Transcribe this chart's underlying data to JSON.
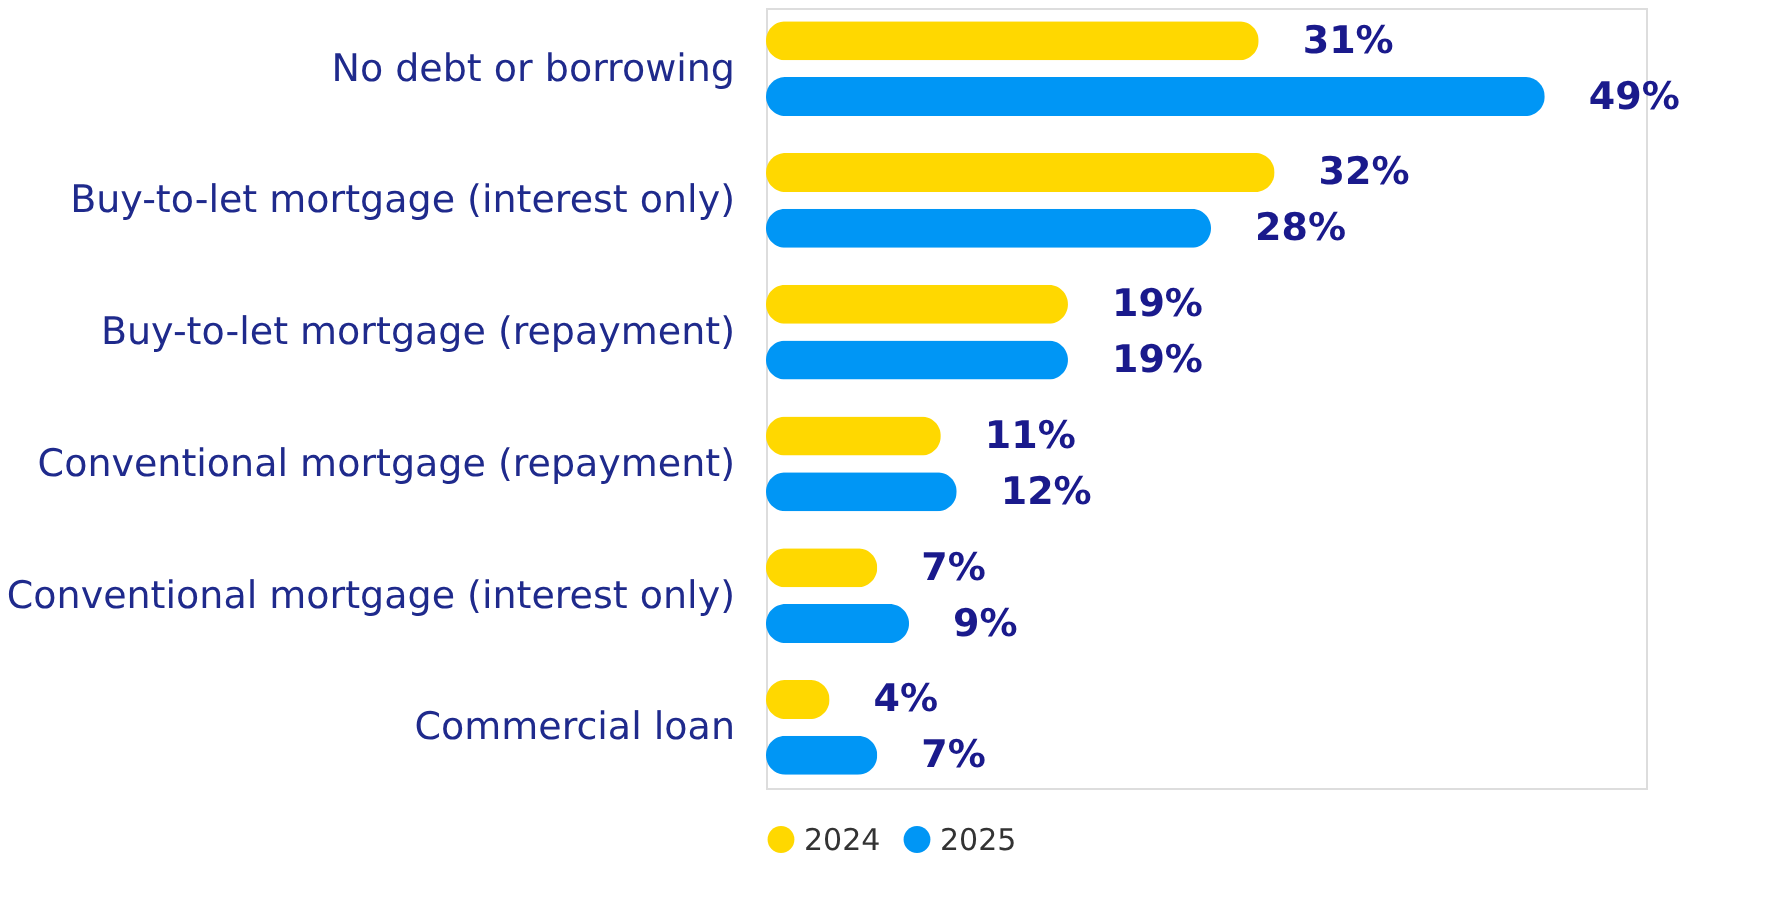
{
  "chart_data": {
    "type": "bar",
    "orientation": "horizontal",
    "categories": [
      "No debt or borrowing",
      "Buy-to-let mortgage (interest only)",
      "Buy-to-let mortgage (repayment)",
      "Conventional mortgage (repayment)",
      "Conventional mortgage (interest only)",
      "Commercial loan"
    ],
    "series": [
      {
        "name": "2024",
        "color": "#ffd800",
        "values": [
          31,
          32,
          19,
          11,
          7,
          4
        ],
        "value_labels": [
          "31%",
          "32%",
          "19%",
          "11%",
          "7%",
          "4%"
        ]
      },
      {
        "name": "2025",
        "color": "#0096f5",
        "values": [
          49,
          28,
          19,
          12,
          9,
          7
        ],
        "value_labels": [
          "49%",
          "28%",
          "19%",
          "12%",
          "9%",
          "7%"
        ]
      }
    ],
    "legend": "bottom",
    "grid": false
  }
}
